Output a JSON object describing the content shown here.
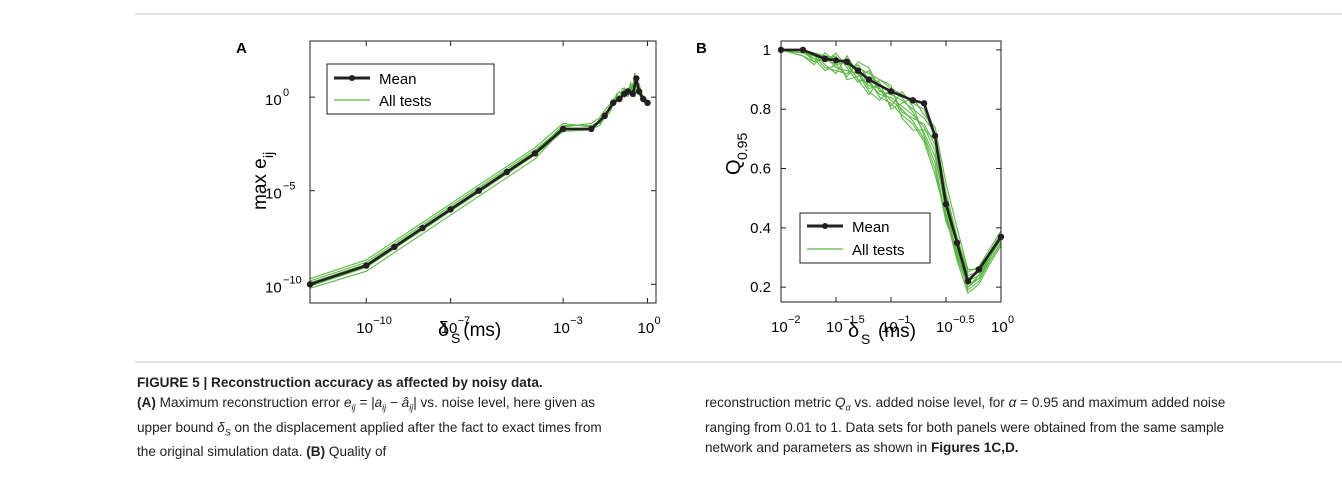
{
  "colors": {
    "mean": "#231f20",
    "tests": "#5cb846",
    "rule": "#c9c9c9",
    "text": "#231f20"
  },
  "chart_data": [
    {
      "type": "line",
      "panel_label": "A",
      "xscale": "log",
      "yscale": "log",
      "xlim": [
        1e-12,
        2
      ],
      "ylim": [
        1e-11,
        1000.0
      ],
      "x_ticks": [
        1e-10,
        1e-07,
        0.001,
        1
      ],
      "x_tick_labels": [
        "10",
        "10",
        "10",
        "10"
      ],
      "x_tick_exps": [
        "−10",
        "−7",
        "−3",
        "0"
      ],
      "y_ticks": [
        1e-10,
        1e-05,
        1
      ],
      "y_tick_labels": [
        "10",
        "10",
        "10"
      ],
      "y_tick_exps": [
        "−10",
        "−5",
        "0"
      ],
      "xlabel": "δ",
      "xlabel_sub": "S",
      "xlabel_unit": " (ms)",
      "ylabel": "max e",
      "ylabel_sub": "ij",
      "legend": {
        "position": "top-left",
        "entries": [
          "Mean",
          "All tests"
        ]
      },
      "series": [
        {
          "name": "Mean",
          "x": [
            1e-12,
            1e-10,
            1e-09,
            1e-08,
            1e-07,
            1e-06,
            1e-05,
            0.0001,
            0.001,
            0.01,
            0.03,
            0.06,
            0.1,
            0.15,
            0.2,
            0.3,
            0.4,
            0.5,
            0.7,
            1
          ],
          "y": [
            1e-10,
            1e-09,
            1e-08,
            1e-07,
            1e-06,
            1e-05,
            0.0001,
            0.001,
            0.02,
            0.02,
            0.1,
            0.5,
            0.8,
            1.5,
            2,
            1.5,
            10,
            2,
            0.8,
            0.5
          ]
        }
      ],
      "tests": {
        "name": "All tests",
        "x": [
          1e-12,
          1e-10,
          1e-09,
          1e-08,
          1e-07,
          1e-06,
          1e-05,
          0.0001,
          0.001,
          0.01,
          0.02,
          0.03,
          0.045,
          0.06,
          0.08,
          0.1,
          0.13,
          0.15,
          0.2,
          0.25,
          0.3,
          0.35,
          0.4,
          0.5,
          0.6,
          0.7,
          0.85,
          1
        ],
        "traces": [
          [
            6e-11,
            5e-10,
            5e-09,
            5e-08,
            5e-07,
            5e-06,
            5e-05,
            0.0005,
            0.02,
            0.02,
            0.03,
            0.08,
            0.15,
            0.4,
            0.7,
            0.6,
            1.2,
            1.5,
            1.1,
            3,
            2,
            1,
            4,
            1.5,
            0.8,
            0.6,
            0.5,
            0.4
          ],
          [
            1.2e-10,
            1.2e-09,
            1.2e-08,
            1.2e-07,
            1.2e-06,
            1.2e-05,
            0.00012,
            0.0012,
            0.03,
            0.03,
            0.05,
            0.15,
            0.25,
            0.8,
            1,
            0.9,
            2,
            1.8,
            2.5,
            2,
            5,
            3,
            8,
            2,
            1.5,
            0.9,
            0.7,
            0.5
          ],
          [
            2e-10,
            2e-09,
            2e-08,
            2e-07,
            2e-06,
            2e-05,
            0.0002,
            0.002,
            0.04,
            0.025,
            0.04,
            0.1,
            0.3,
            0.5,
            1.5,
            0.7,
            3,
            2.5,
            1.5,
            6,
            3,
            20,
            4,
            3,
            1,
            1.2,
            0.8,
            0.6
          ],
          [
            8e-11,
            8e-10,
            8e-09,
            8e-08,
            8e-07,
            8e-06,
            8e-05,
            0.0008,
            0.015,
            0.018,
            0.06,
            0.12,
            0.2,
            0.6,
            0.9,
            1.2,
            1.5,
            1,
            3,
            2.5,
            1.8,
            6,
            2,
            5,
            2,
            0.7,
            0.9,
            0.5
          ],
          [
            1.5e-10,
            1.5e-09,
            1.5e-08,
            1.5e-07,
            1.5e-06,
            1.5e-05,
            0.00015,
            0.0015,
            0.025,
            0.04,
            0.08,
            0.2,
            0.4,
            0.7,
            1.2,
            2,
            1,
            3,
            2,
            4,
            1.5,
            2.5,
            6,
            2.5,
            1.8,
            1,
            0.6,
            0.45
          ]
        ]
      }
    },
    {
      "type": "line",
      "panel_label": "B",
      "xscale": "log",
      "yscale": "linear",
      "xlim": [
        0.01,
        1
      ],
      "ylim": [
        0.15,
        1.03
      ],
      "x_ticks": [
        0.01,
        0.0316228,
        0.1,
        0.316228,
        1
      ],
      "x_tick_labels": [
        "10",
        "10",
        "10",
        "10",
        "10"
      ],
      "x_tick_exps": [
        "−2",
        "−1.5",
        "−1",
        "−0.5",
        "0"
      ],
      "y_ticks": [
        0.2,
        0.4,
        0.6,
        0.8,
        1
      ],
      "y_tick_labels": [
        "0.2",
        "0.4",
        "0.6",
        "0.8",
        "1"
      ],
      "xlabel": "δ",
      "xlabel_sub": "S",
      "xlabel_unit": "(ms)",
      "ylabel": "Q",
      "ylabel_sub": "0.95",
      "legend": {
        "position": "bottom-left",
        "entries": [
          "Mean",
          "All tests"
        ]
      },
      "series": [
        {
          "name": "Mean",
          "x": [
            0.01,
            0.0158,
            0.0251,
            0.0316,
            0.0398,
            0.05,
            0.063,
            0.1,
            0.158,
            0.2,
            0.251,
            0.316,
            0.398,
            0.5,
            0.631,
            1.0
          ],
          "y": [
            1.0,
            1.0,
            0.97,
            0.965,
            0.96,
            0.93,
            0.9,
            0.86,
            0.83,
            0.82,
            0.71,
            0.48,
            0.35,
            0.22,
            0.26,
            0.37
          ]
        }
      ],
      "tests": {
        "name": "All tests",
        "x": [
          0.01,
          0.0158,
          0.02,
          0.0251,
          0.0316,
          0.0398,
          0.05,
          0.063,
          0.079,
          0.1,
          0.126,
          0.158,
          0.2,
          0.251,
          0.316,
          0.398,
          0.5,
          0.631,
          0.794,
          1.0
        ],
        "traces": [
          [
            1,
            0.99,
            0.98,
            0.96,
            0.97,
            0.95,
            0.94,
            0.92,
            0.9,
            0.87,
            0.85,
            0.82,
            0.8,
            0.7,
            0.5,
            0.35,
            0.23,
            0.25,
            0.3,
            0.37
          ],
          [
            1,
            1,
            0.97,
            0.93,
            0.95,
            0.96,
            0.9,
            0.89,
            0.85,
            0.84,
            0.81,
            0.78,
            0.74,
            0.66,
            0.45,
            0.3,
            0.2,
            0.24,
            0.31,
            0.36
          ],
          [
            1,
            0.99,
            0.99,
            0.98,
            0.94,
            0.93,
            0.92,
            0.88,
            0.87,
            0.83,
            0.8,
            0.76,
            0.7,
            0.6,
            0.42,
            0.33,
            0.19,
            0.22,
            0.29,
            0.35
          ],
          [
            1,
            1,
            0.96,
            0.97,
            0.98,
            0.9,
            0.91,
            0.93,
            0.86,
            0.85,
            0.83,
            0.8,
            0.77,
            0.72,
            0.52,
            0.37,
            0.25,
            0.27,
            0.33,
            0.39
          ],
          [
            1,
            0.98,
            0.95,
            0.99,
            0.96,
            0.97,
            0.93,
            0.87,
            0.88,
            0.86,
            0.84,
            0.79,
            0.72,
            0.64,
            0.47,
            0.31,
            0.21,
            0.23,
            0.3,
            0.36
          ],
          [
            1,
            1,
            0.98,
            0.94,
            0.93,
            0.92,
            0.95,
            0.9,
            0.84,
            0.82,
            0.78,
            0.75,
            0.69,
            0.58,
            0.44,
            0.29,
            0.18,
            0.21,
            0.28,
            0.34
          ],
          [
            1,
            0.99,
            0.97,
            0.96,
            0.99,
            0.94,
            0.89,
            0.91,
            0.89,
            0.8,
            0.82,
            0.84,
            0.78,
            0.74,
            0.55,
            0.4,
            0.26,
            0.26,
            0.32,
            0.38
          ],
          [
            1,
            1,
            0.99,
            0.95,
            0.92,
            0.98,
            0.92,
            0.86,
            0.83,
            0.87,
            0.79,
            0.77,
            0.75,
            0.68,
            0.49,
            0.34,
            0.22,
            0.24,
            0.3,
            0.37
          ],
          [
            1,
            0.98,
            0.96,
            0.97,
            0.95,
            0.91,
            0.96,
            0.94,
            0.87,
            0.81,
            0.86,
            0.81,
            0.71,
            0.62,
            0.43,
            0.32,
            0.2,
            0.23,
            0.29,
            0.35
          ],
          [
            1,
            0.99,
            0.98,
            0.98,
            0.97,
            0.95,
            0.9,
            0.85,
            0.9,
            0.88,
            0.77,
            0.73,
            0.73,
            0.7,
            0.51,
            0.36,
            0.24,
            0.25,
            0.31,
            0.36
          ]
        ]
      }
    }
  ],
  "caption": {
    "figure_label": "FIGURE 5 | Reconstruction accuracy as affected by noisy data.",
    "a_label": "(A)",
    "a_text_1": " Maximum reconstruction error ",
    "a_text_2": " vs. noise level, here given as upper bound ",
    "a_text_3": " on the displacement applied after the fact to exact times from the original simulation data. ",
    "b_label": "(B)",
    "b_text_1": " Quality of",
    "right_text_1": "reconstruction metric ",
    "right_text_2": " vs. added noise level, for ",
    "right_text_3": " = 0.95 and maximum added noise ranging from 0.01 to 1. Data sets for both panels were obtained from the same sample network and parameters as shown in ",
    "figures_ref": "Figures 1C,D.",
    "eq_e": "e",
    "eq_sub_ij": "ij",
    "eq_rhs": " = |a",
    "eq_rhs_sub": "ij",
    "eq_minus": " − â",
    "eq_minus_sub": "ij",
    "eq_close": "|",
    "delta_sym": "δ",
    "delta_sub": "S",
    "q_sym": "Q",
    "q_sub": "α",
    "alpha_sym": "α"
  }
}
